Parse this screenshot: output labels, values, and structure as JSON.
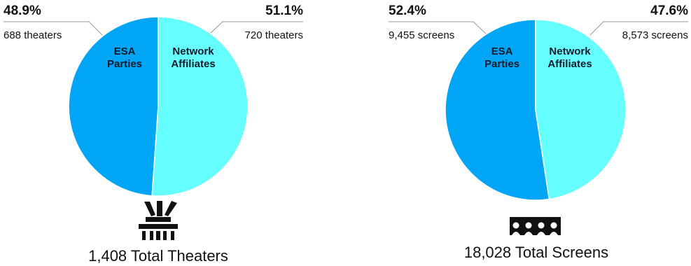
{
  "colors": {
    "esa": "#00A5F5",
    "network": "#66FFFF",
    "edge": "#ffffff",
    "icon": "#111111",
    "leader": "#999999"
  },
  "chart_data": [
    {
      "type": "pie",
      "series": [
        {
          "name": "ESA Parties",
          "value": 48.9,
          "pct_label": "48.9%",
          "count_label": "688 theaters",
          "label_lines": [
            "ESA",
            "Parties"
          ]
        },
        {
          "name": "Network Affiliates",
          "value": 51.1,
          "pct_label": "51.1%",
          "count_label": "720 theaters",
          "label_lines": [
            "Network",
            "Affiliates"
          ]
        }
      ],
      "total_label": "1,408 Total Theaters",
      "icon": "theater-building-icon"
    },
    {
      "type": "pie",
      "series": [
        {
          "name": "ESA Parties",
          "value": 52.4,
          "pct_label": "52.4%",
          "count_label": "9,455 screens",
          "label_lines": [
            "ESA",
            "Parties"
          ]
        },
        {
          "name": "Network Affiliates",
          "value": 47.6,
          "pct_label": "47.6%",
          "count_label": "8,573 screens",
          "label_lines": [
            "Network",
            "Affiliates"
          ]
        }
      ],
      "total_label": "18,028 Total Screens",
      "icon": "audience-screen-icon"
    }
  ]
}
